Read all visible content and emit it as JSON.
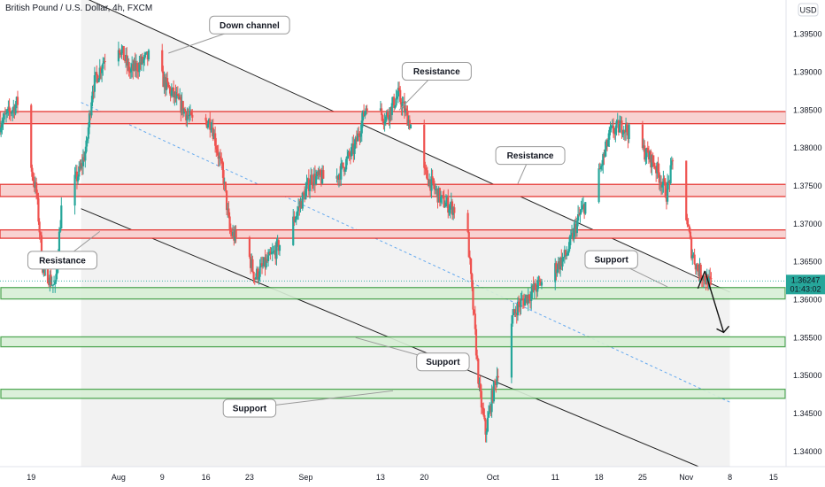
{
  "header": {
    "symbol_title": "British Pound / U.S. Dollar, 4h, FXCM",
    "currency": "USD"
  },
  "price_tag": {
    "price": "1.36247",
    "countdown": "01:43:02"
  },
  "colors": {
    "bull": "#26a69a",
    "bear": "#ef5350",
    "resistance_line": "#e53935",
    "resistance_fill": "#f8d2d1",
    "support_line": "#43a047",
    "support_fill": "#d8efd6",
    "channel_fill": "#f0f0f0",
    "midline": "#64a9ef",
    "price_tag": "#26a69a"
  },
  "chart_data": {
    "type": "candlestick",
    "title": "British Pound / U.S. Dollar, 4h, FXCM",
    "x_ticks": [
      "19",
      "Aug",
      "9",
      "16",
      "23",
      "Sep",
      "13",
      "20",
      "Oct",
      "11",
      "18",
      "25",
      "Nov",
      "8",
      "15"
    ],
    "y_ticks": [
      "1.39500",
      "1.39000",
      "1.38500",
      "1.38000",
      "1.37500",
      "1.37000",
      "1.36500",
      "1.36000",
      "1.35500",
      "1.35000",
      "1.34500",
      "1.34000"
    ],
    "ylim": [
      1.338,
      1.3995
    ],
    "x_start": "2021-07-14",
    "x_end": "2021-11-17",
    "last_price": 1.36247,
    "path_anchors": [
      [
        "2021-07-14",
        1.383
      ],
      [
        "2021-07-17",
        1.386
      ],
      [
        "2021-07-20",
        1.374
      ],
      [
        "2021-07-21",
        1.3645
      ],
      [
        "2021-07-22",
        1.363
      ],
      [
        "2021-07-23",
        1.3615
      ],
      [
        "2021-07-24",
        1.372
      ],
      [
        "2021-07-27",
        1.377
      ],
      [
        "2021-07-28",
        1.38
      ],
      [
        "2021-07-29",
        1.388
      ],
      [
        "2021-07-31",
        1.392
      ],
      [
        "2021-08-02",
        1.394
      ],
      [
        "2021-08-04",
        1.39
      ],
      [
        "2021-08-07",
        1.392
      ],
      [
        "2021-08-10",
        1.388
      ],
      [
        "2021-08-14",
        1.3835
      ],
      [
        "2021-08-17",
        1.3835
      ],
      [
        "2021-08-19",
        1.376
      ],
      [
        "2021-08-20",
        1.369
      ],
      [
        "2021-08-23",
        1.366
      ],
      [
        "2021-08-24",
        1.363
      ],
      [
        "2021-08-27",
        1.366
      ],
      [
        "2021-08-30",
        1.37
      ],
      [
        "2021-09-02",
        1.376
      ],
      [
        "2021-09-06",
        1.376
      ],
      [
        "2021-09-09",
        1.38
      ],
      [
        "2021-09-11",
        1.386
      ],
      [
        "2021-09-14",
        1.384
      ],
      [
        "2021-09-16",
        1.387
      ],
      [
        "2021-09-18",
        1.383
      ],
      [
        "2021-09-20",
        1.377
      ],
      [
        "2021-09-23",
        1.373
      ],
      [
        "2021-09-25",
        1.372
      ],
      [
        "2021-09-27",
        1.37
      ],
      [
        "2021-09-29",
        1.348
      ],
      [
        "2021-09-30",
        1.3425
      ],
      [
        "2021-10-01",
        1.347
      ],
      [
        "2021-10-03",
        1.3545
      ],
      [
        "2021-10-05",
        1.359
      ],
      [
        "2021-10-08",
        1.3615
      ],
      [
        "2021-10-11",
        1.364
      ],
      [
        "2021-10-13",
        1.366
      ],
      [
        "2021-10-15",
        1.371
      ],
      [
        "2021-10-18",
        1.376
      ],
      [
        "2021-10-20",
        1.382
      ],
      [
        "2021-10-22",
        1.383
      ],
      [
        "2021-10-24",
        1.381
      ],
      [
        "2021-10-27",
        1.378
      ],
      [
        "2021-10-29",
        1.374
      ],
      [
        "2021-10-30",
        1.378
      ],
      [
        "2021-11-01",
        1.372
      ],
      [
        "2021-11-02",
        1.3665
      ],
      [
        "2021-11-03",
        1.364
      ],
      [
        "2021-11-05",
        1.362
      ]
    ],
    "resistance_zones": [
      [
        1.3832,
        1.3848
      ],
      [
        1.3736,
        1.3752
      ],
      [
        1.3681,
        1.3692
      ]
    ],
    "support_zones": [
      [
        1.3601,
        1.3616
      ],
      [
        1.3538,
        1.3551
      ],
      [
        1.347,
        1.3482
      ]
    ],
    "channel": {
      "upper": [
        [
          "2021-07-27",
          1.4
        ],
        [
          "2021-11-08",
          1.361
        ]
      ],
      "lower": [
        [
          "2021-07-27",
          1.372
        ],
        [
          "2021-11-03",
          1.338
        ]
      ],
      "midline": [
        [
          "2021-07-27",
          1.386
        ],
        [
          "2021-11-08",
          1.3465
        ]
      ],
      "shade_until": "2021-11-08"
    },
    "projection": [
      [
        "2021-11-04",
        1.3638
      ],
      [
        "2021-11-07",
        1.3557
      ]
    ],
    "annotations": [
      {
        "text": "Down channel",
        "anchor": [
          "2021-08-10",
          1.3925
        ],
        "box": [
          "2021-08-23",
          1.3962
        ]
      },
      {
        "text": "Resistance",
        "anchor": [
          "2021-09-16",
          1.385
        ],
        "box": [
          "2021-09-22",
          1.3901
        ]
      },
      {
        "text": "Resistance",
        "anchor": [
          "2021-10-05",
          1.3753
        ],
        "box": [
          "2021-10-07",
          1.379
        ]
      },
      {
        "text": "Resistance",
        "anchor": [
          "2021-07-30",
          1.369
        ],
        "box": [
          "2021-07-24",
          1.3652
        ]
      },
      {
        "text": "Support",
        "anchor": [
          "2021-10-29",
          1.3617
        ],
        "box": [
          "2021-10-20",
          1.3653
        ]
      },
      {
        "text": "Support",
        "anchor": [
          "2021-09-09",
          1.355
        ],
        "box": [
          "2021-09-23",
          1.3518
        ]
      },
      {
        "text": "Support",
        "anchor": [
          "2021-09-15",
          1.348
        ],
        "box": [
          "2021-08-23",
          1.3457
        ]
      }
    ]
  }
}
